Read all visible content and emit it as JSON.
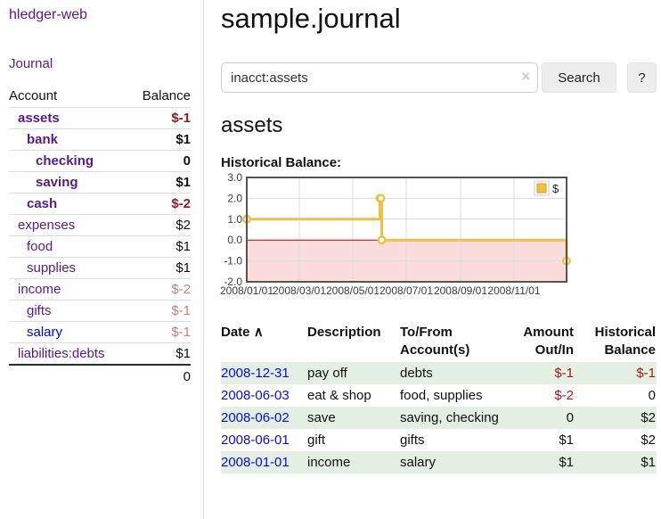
{
  "app": {
    "title": "hledger-web"
  },
  "sidebar": {
    "journal_link": "Journal",
    "accounts": {
      "headers": {
        "account": "Account",
        "balance": "Balance"
      },
      "rows": [
        {
          "name": "assets",
          "balance": "$-1",
          "level": 0,
          "bold": true,
          "balance_class": "neg",
          "link_class": ""
        },
        {
          "name": "bank",
          "balance": "$1",
          "level": 1,
          "bold": true,
          "balance_class": "pos",
          "link_class": ""
        },
        {
          "name": "checking",
          "balance": "0",
          "level": 2,
          "bold": true,
          "balance_class": "pos",
          "link_class": ""
        },
        {
          "name": "saving",
          "balance": "$1",
          "level": 2,
          "bold": true,
          "balance_class": "pos",
          "link_class": ""
        },
        {
          "name": "cash",
          "balance": "$-2",
          "level": 1,
          "bold": true,
          "balance_class": "neg",
          "link_class": ""
        },
        {
          "name": "expenses",
          "balance": "$2",
          "level": 0,
          "bold": false,
          "balance_class": "pos",
          "link_class": ""
        },
        {
          "name": "food",
          "balance": "$1",
          "level": 1,
          "bold": false,
          "balance_class": "pos",
          "link_class": ""
        },
        {
          "name": "supplies",
          "balance": "$1",
          "level": 1,
          "bold": false,
          "balance_class": "pos",
          "link_class": ""
        },
        {
          "name": "income",
          "balance": "$-2",
          "level": 0,
          "bold": false,
          "balance_class": "negsoft",
          "link_class": ""
        },
        {
          "name": "gifts",
          "balance": "$-1",
          "level": 1,
          "bold": false,
          "balance_class": "negsoft",
          "link_class": ""
        },
        {
          "name": "salary",
          "balance": "$-1",
          "level": 1,
          "bold": false,
          "balance_class": "negsoft",
          "link_class": "unvisited"
        },
        {
          "name": "liabilities:debts",
          "balance": "$1",
          "level": 0,
          "bold": false,
          "balance_class": "pos",
          "link_class": ""
        }
      ],
      "total": "0"
    }
  },
  "header": {
    "title": "sample.journal"
  },
  "search": {
    "value": "inacct:assets",
    "clear_icon": "×",
    "button_label": "Search",
    "help_label": "?"
  },
  "account_page": {
    "heading": "assets"
  },
  "chart_data": {
    "type": "line",
    "title": "Historical Balance:",
    "style": "steps",
    "ylim": [
      -2,
      3
    ],
    "xlim_days": [
      0,
      365
    ],
    "grid": true,
    "legend_position": "top-right",
    "series": [
      {
        "name": "$",
        "color": "#edc240",
        "points": [
          {
            "date": "2008-01-01",
            "day": 0,
            "value": 1
          },
          {
            "date": "2008-06-01",
            "day": 152,
            "value": 2
          },
          {
            "date": "2008-06-02",
            "day": 153,
            "value": 2
          },
          {
            "date": "2008-06-03",
            "day": 154,
            "value": 0
          },
          {
            "date": "2008-12-31",
            "day": 365,
            "value": -1
          }
        ]
      }
    ],
    "y_ticks": [
      {
        "value": 3,
        "label": "3.0"
      },
      {
        "value": 2,
        "label": "2.0"
      },
      {
        "value": 1,
        "label": "1.0"
      },
      {
        "value": 0,
        "label": "0.0"
      },
      {
        "value": -1,
        "label": "-1.0"
      },
      {
        "value": -2,
        "label": "-2.0"
      }
    ],
    "x_ticks": [
      {
        "day": 0,
        "label": "2008/01/01"
      },
      {
        "day": 60,
        "label": "2008/03/01"
      },
      {
        "day": 121,
        "label": "2008/05/01"
      },
      {
        "day": 182,
        "label": "2008/07/01"
      },
      {
        "day": 244,
        "label": "2008/09/01"
      },
      {
        "day": 305,
        "label": "2008/11/01"
      }
    ],
    "negative_region_color": "#fbdcdc",
    "zero_line_color": "#b40000"
  },
  "register": {
    "headers": {
      "date": "Date",
      "sort_icon": "∧",
      "description": "Description",
      "account": "To/From Account(s)",
      "amount": "Amount Out/In",
      "balance": "Historical Balance"
    },
    "rows": [
      {
        "date": "2008-12-31",
        "description": "pay off",
        "accounts": "debts",
        "amount": "$-1",
        "amount_neg": true,
        "balance": "$-1",
        "balance_neg": true
      },
      {
        "date": "2008-06-03",
        "description": "eat & shop",
        "accounts": "food, supplies",
        "amount": "$-2",
        "amount_neg": true,
        "balance": "0",
        "balance_neg": false
      },
      {
        "date": "2008-06-02",
        "description": "save",
        "accounts": "saving, checking",
        "amount": "0",
        "amount_neg": false,
        "balance": "$2",
        "balance_neg": false
      },
      {
        "date": "2008-06-01",
        "description": "gift",
        "accounts": "gifts",
        "amount": "$1",
        "amount_neg": false,
        "balance": "$2",
        "balance_neg": false
      },
      {
        "date": "2008-01-01",
        "description": "income",
        "accounts": "salary",
        "amount": "$1",
        "amount_neg": false,
        "balance": "$1",
        "balance_neg": false
      }
    ]
  }
}
